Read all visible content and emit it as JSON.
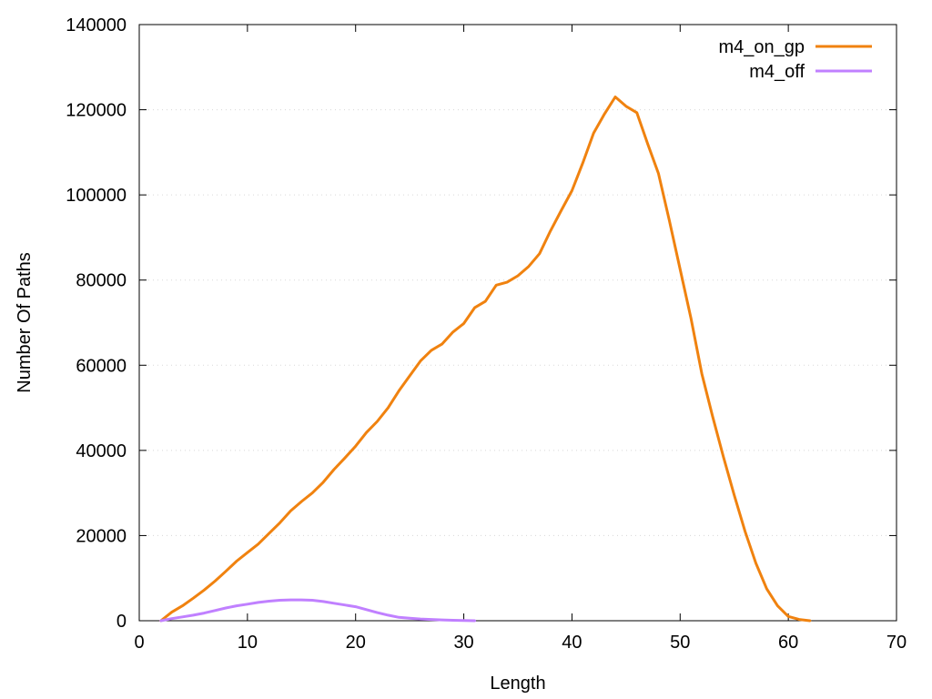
{
  "chart_data": {
    "type": "line",
    "xlabel": "Length",
    "ylabel": "Number Of Paths",
    "xlim": [
      0,
      70
    ],
    "ylim": [
      0,
      140000
    ],
    "x_ticks": [
      0,
      10,
      20,
      30,
      40,
      50,
      60,
      70
    ],
    "y_ticks": [
      0,
      20000,
      40000,
      60000,
      80000,
      100000,
      120000,
      140000
    ],
    "grid": "horizontal dotted",
    "legend_position": "top-right",
    "series": [
      {
        "name": "m4_on_gp",
        "color": "#f0820f",
        "x": [
          2,
          3,
          4,
          5,
          6,
          7,
          8,
          9,
          10,
          11,
          12,
          13,
          14,
          15,
          16,
          17,
          18,
          19,
          20,
          21,
          22,
          23,
          24,
          25,
          26,
          27,
          28,
          29,
          30,
          31,
          32,
          33,
          34,
          35,
          36,
          37,
          38,
          39,
          40,
          41,
          42,
          43,
          44,
          45,
          46,
          47,
          48,
          49,
          50,
          51,
          52,
          53,
          54,
          55,
          56,
          57,
          58,
          59,
          60,
          61,
          62
        ],
        "y": [
          0,
          2000,
          3500,
          5300,
          7200,
          9300,
          11600,
          14000,
          16000,
          18000,
          20500,
          23000,
          25800,
          28000,
          30000,
          32500,
          35500,
          38200,
          41000,
          44200,
          46800,
          50000,
          54000,
          57500,
          61000,
          63500,
          65000,
          67800,
          69800,
          73500,
          75000,
          78800,
          79500,
          81000,
          83200,
          86200,
          91500,
          96300,
          101000,
          107500,
          114500,
          119000,
          123000,
          120800,
          119300,
          112000,
          105000,
          94000,
          82500,
          71000,
          58000,
          48000,
          38500,
          29500,
          21000,
          13500,
          7500,
          3500,
          1000,
          300,
          0
        ]
      },
      {
        "name": "m4_off",
        "color": "#c080ff",
        "x": [
          2,
          3,
          4,
          5,
          6,
          7,
          8,
          9,
          10,
          11,
          12,
          13,
          14,
          15,
          16,
          17,
          18,
          19,
          20,
          21,
          22,
          23,
          24,
          25,
          26,
          27,
          28,
          29,
          30,
          31
        ],
        "y": [
          0,
          500,
          900,
          1300,
          1800,
          2400,
          3000,
          3500,
          3900,
          4300,
          4600,
          4800,
          4900,
          4900,
          4800,
          4500,
          4100,
          3700,
          3300,
          2600,
          1900,
          1300,
          800,
          600,
          400,
          300,
          200,
          100,
          50,
          0
        ]
      }
    ]
  }
}
